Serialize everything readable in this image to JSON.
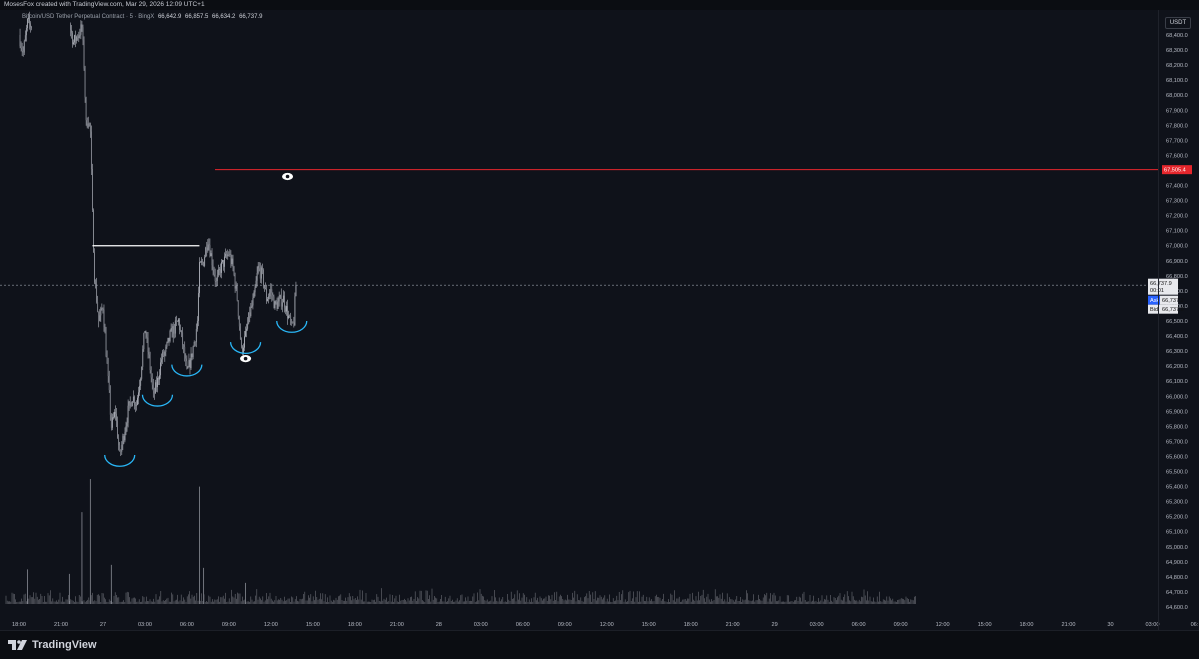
{
  "header": {
    "attribution": "MosesFox created with TradingView.com, Mar 29, 2026 12:09 UTC+1"
  },
  "legend": {
    "symbol": "Bitcoin/USD Tether Perpetual Contract · 5 · BingX",
    "open": "66,642.9",
    "high": "66,857.5",
    "low": "66,634.2",
    "close": "66,737.9"
  },
  "axis": {
    "currency": "USDT",
    "price_labels": [
      "68,400.0",
      "68,300.0",
      "68,200.0",
      "68,100.0",
      "68,000.0",
      "67,900.0",
      "67,800.0",
      "67,700.0",
      "67,600.0",
      "67,500.0",
      "67,400.0",
      "67,300.0",
      "67,200.0",
      "67,100.0",
      "67,000.0",
      "66,900.0",
      "66,800.0",
      "66,700.0",
      "66,600.0",
      "66,500.0",
      "66,400.0",
      "66,300.0",
      "66,200.0",
      "66,100.0",
      "66,000.0",
      "65,900.0",
      "65,800.0",
      "65,700.0",
      "65,600.0",
      "65,500.0",
      "65,400.0",
      "65,300.0",
      "65,200.0",
      "65,100.0",
      "65,000.0",
      "64,900.0",
      "64,800.0",
      "64,700.0",
      "64,600.0"
    ],
    "time_labels": [
      "18:00",
      "21:00",
      "27",
      "03:00",
      "06:00",
      "09:00",
      "12:00",
      "15:00",
      "18:00",
      "21:00",
      "28",
      "03:00",
      "06:00",
      "09:00",
      "12:00",
      "15:00",
      "18:00",
      "21:00",
      "29",
      "03:00",
      "06:00",
      "09:00",
      "12:00",
      "15:00",
      "18:00",
      "21:00",
      "30",
      "03:00",
      "06:"
    ]
  },
  "tags": {
    "alert_price": "67,505.4",
    "last_price": "66,737.9",
    "countdown": "00:01",
    "ask_label": "Ask",
    "ask_price": "66,737.2",
    "bid_label": "Bid",
    "bid_price": "66,737.0"
  },
  "footer": {
    "logo_text": "TradingView"
  },
  "colors": {
    "background": "#0f121a",
    "candles": "#b2b5be",
    "alert_line": "#e5262c",
    "annotation_arc": "#29b6f6",
    "level_line": "#ffffff",
    "ask_tag": "#2962ff"
  },
  "chart_data": {
    "type": "candlestick",
    "symbol": "Bitcoin/USD Tether Perpetual Contract · 5 · BingX",
    "ylim": [
      64560,
      68480
    ],
    "price_path": [
      [
        "26 18:00",
        68400
      ],
      [
        "26 19:00",
        68280
      ],
      [
        "26 20:00",
        68480
      ],
      [
        "26 21:00",
        68460
      ],
      [
        "27 06:00",
        68470
      ],
      [
        "27 07:00",
        68350
      ],
      [
        "27 09:00",
        68450
      ],
      [
        "27 09:30",
        68200
      ],
      [
        "27 10:00",
        67800
      ],
      [
        "27 10:30",
        67850
      ],
      [
        "27 11:00",
        67750
      ],
      [
        "27 11:30",
        67200
      ],
      [
        "27 12:00",
        66800
      ],
      [
        "27 13:00",
        66500
      ],
      [
        "27 14:00",
        66600
      ],
      [
        "27 15:00",
        66200
      ],
      [
        "27 16:00",
        65800
      ],
      [
        "27 17:00",
        65900
      ],
      [
        "27 18:00",
        65600
      ],
      [
        "27 19:00",
        65750
      ],
      [
        "27 20:00",
        65900
      ],
      [
        "27 21:00",
        66000
      ],
      [
        "27 22:00",
        65950
      ],
      [
        "27 23:00",
        66150
      ],
      [
        "28 00:00",
        66450
      ],
      [
        "28 01:00",
        66250
      ],
      [
        "28 02:00",
        66000
      ],
      [
        "28 03:00",
        66100
      ],
      [
        "28 04:00",
        66250
      ],
      [
        "28 05:00",
        66300
      ],
      [
        "28 06:00",
        66400
      ],
      [
        "28 08:00",
        66500
      ],
      [
        "28 09:00",
        66350
      ],
      [
        "28 10:00",
        66150
      ],
      [
        "28 11:00",
        66250
      ],
      [
        "28 12:00",
        66400
      ],
      [
        "28 12:30",
        66500
      ],
      [
        "28 13:00",
        66850
      ],
      [
        "28 14:00",
        66900
      ],
      [
        "28 15:00",
        67050
      ],
      [
        "28 16:00",
        66900
      ],
      [
        "28 17:00",
        66750
      ],
      [
        "28 18:00",
        66850
      ],
      [
        "28 20:00",
        66950
      ],
      [
        "28 21:00",
        66850
      ],
      [
        "28 22:00",
        66650
      ],
      [
        "28 23:00",
        66300
      ],
      [
        "29 00:00",
        66400
      ],
      [
        "29 01:00",
        66550
      ],
      [
        "29 02:00",
        66650
      ],
      [
        "29 03:00",
        66850
      ],
      [
        "29 04:00",
        66800
      ],
      [
        "29 05:00",
        66650
      ],
      [
        "29 06:00",
        66700
      ],
      [
        "29 07:00",
        66600
      ],
      [
        "29 09:00",
        66650
      ],
      [
        "29 10:00",
        66550
      ],
      [
        "29 11:00",
        66450
      ],
      [
        "29 11:30",
        66500
      ],
      [
        "29 12:00",
        66740
      ]
    ],
    "horizontal_levels": [
      {
        "price": 67505.4,
        "color": "#e5262c"
      },
      {
        "price": 67000,
        "from": "27 11:30",
        "to": "28 13:00",
        "color": "#ffffff"
      },
      {
        "price": 66737.9,
        "style": "dotted"
      }
    ],
    "annotations": {
      "arcs": [
        {
          "time": "27 18:00",
          "price": 65550
        },
        {
          "time": "28 03:00",
          "price": 65950
        },
        {
          "time": "28 10:00",
          "price": 66150
        },
        {
          "time": "29 00:00",
          "price": 66300
        },
        {
          "time": "29 11:00",
          "price": 66440
        }
      ],
      "eye_icons": [
        {
          "time": "29 10:00",
          "price": 67460
        },
        {
          "time": "29 00:00",
          "price": 66250
        }
      ]
    },
    "volume": {
      "baseline_approx": 64620,
      "spikes": [
        {
          "time": "26 20:00",
          "top": 64850
        },
        {
          "time": "27 09:00",
          "top": 65230
        },
        {
          "time": "27 11:00",
          "top": 65450
        },
        {
          "time": "27 06:00",
          "top": 64820
        },
        {
          "time": "27 16:00",
          "top": 64880
        },
        {
          "time": "28 13:00",
          "top": 65400
        },
        {
          "time": "28 14:00",
          "top": 64860
        },
        {
          "time": "29 00:00",
          "top": 64760
        }
      ]
    }
  }
}
